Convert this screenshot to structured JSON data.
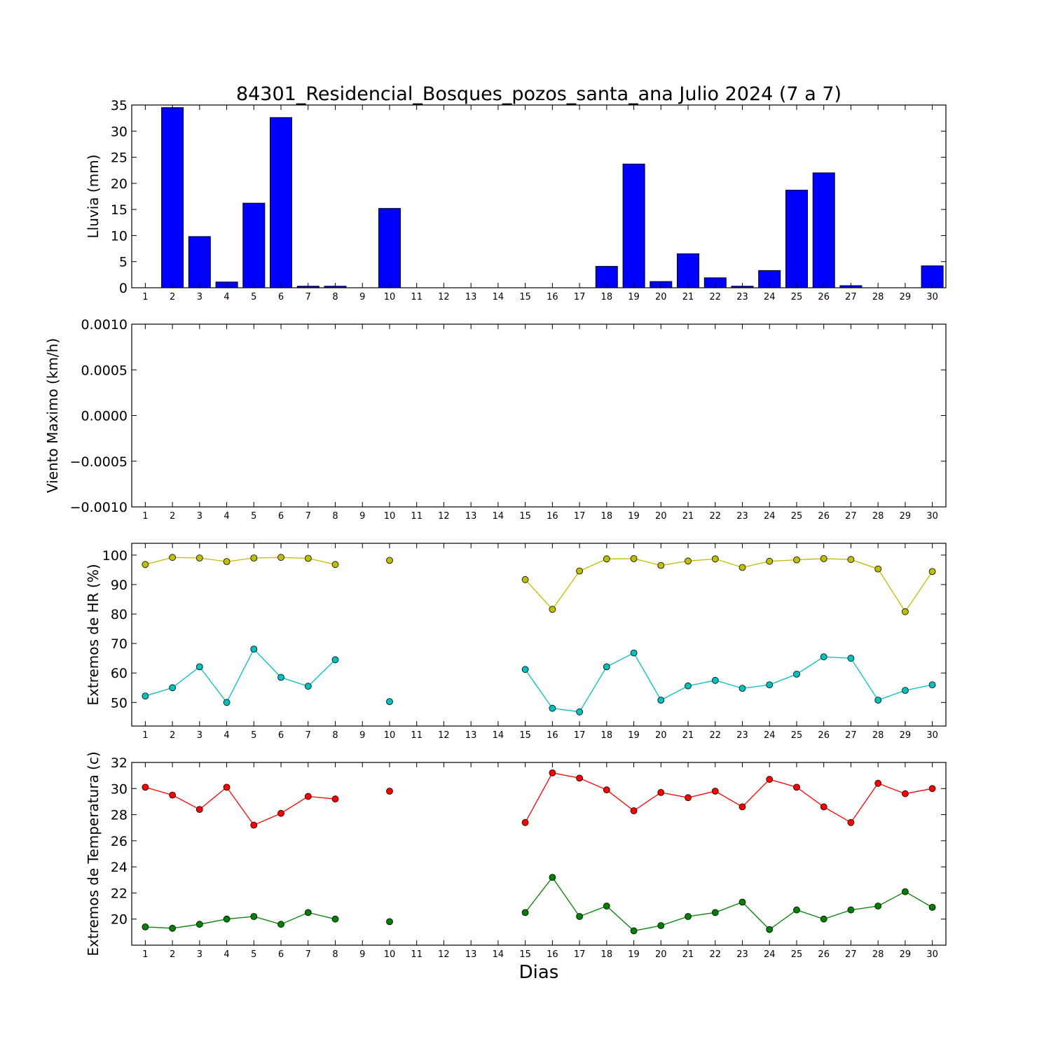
{
  "chart_data": {
    "title": "84301_Residencial_Bosques_pozos_santa_ana Julio 2024  (7 a 7)",
    "xlabel": "Dias",
    "days": [
      "1",
      "2",
      "3",
      "4",
      "5",
      "6",
      "7",
      "8",
      "9",
      "10",
      "11",
      "12",
      "13",
      "14",
      "15",
      "16",
      "17",
      "18",
      "19",
      "20",
      "21",
      "22",
      "23",
      "24",
      "25",
      "26",
      "27",
      "28",
      "29",
      "30"
    ],
    "panels": [
      {
        "type": "bar",
        "ylabel": "Lluvia (mm)",
        "ylim": [
          0,
          35
        ],
        "yticks": [
          "0",
          "5",
          "10",
          "15",
          "20",
          "25",
          "30",
          "35"
        ],
        "series": [
          {
            "color": "#0000ff",
            "values": [
              0,
              34.5,
              9.8,
              1.1,
              16.2,
              32.6,
              0.3,
              0.3,
              0,
              15.2,
              0,
              0,
              0,
              0,
              0,
              0,
              0,
              4.1,
              23.7,
              1.2,
              6.5,
              1.9,
              0.3,
              3.3,
              18.7,
              22.0,
              0.4,
              0,
              0,
              4.2
            ]
          }
        ]
      },
      {
        "type": "line",
        "ylabel": "Viento Maximo (km/h)",
        "ylim": [
          -0.001,
          0.001
        ],
        "yticks": [
          "−0.0010",
          "−0.0005",
          "0.0000",
          "0.0005",
          "0.0010"
        ],
        "series": []
      },
      {
        "type": "line",
        "ylabel": "Extremos de HR (%)",
        "ylim": [
          42,
          104
        ],
        "yticks": [
          "50",
          "60",
          "70",
          "80",
          "90",
          "100"
        ],
        "series": [
          {
            "color": "#bfbf00",
            "values": [
              96.8,
              99.2,
              99.0,
              97.8,
              99.0,
              99.2,
              98.9,
              96.8,
              null,
              98.2,
              null,
              null,
              null,
              null,
              91.7,
              81.6,
              94.6,
              98.7,
              98.8,
              96.5,
              98.0,
              98.7,
              95.8,
              97.9,
              98.4,
              98.8,
              98.5,
              95.3,
              80.8,
              94.4
            ]
          },
          {
            "color": "#00bfbf",
            "values": [
              52.2,
              55.0,
              62.1,
              50.0,
              68.1,
              58.5,
              55.5,
              64.5,
              null,
              50.3,
              null,
              null,
              null,
              null,
              61.2,
              48.0,
              46.8,
              62.1,
              66.8,
              50.8,
              55.6,
              57.5,
              54.8,
              56.0,
              59.6,
              65.5,
              65.0,
              50.8,
              54.1,
              56.0
            ]
          }
        ]
      },
      {
        "type": "line",
        "ylabel": "Extremos de Temperatura (c)",
        "ylim": [
          18,
          32
        ],
        "yticks": [
          "20",
          "22",
          "24",
          "26",
          "28",
          "30",
          "32"
        ],
        "series": [
          {
            "color": "#ff0000",
            "values": [
              30.1,
              29.5,
              28.4,
              30.1,
              27.2,
              28.1,
              29.4,
              29.2,
              null,
              29.8,
              null,
              null,
              null,
              null,
              27.4,
              31.2,
              30.8,
              29.9,
              28.3,
              29.7,
              29.3,
              29.8,
              28.6,
              30.7,
              30.1,
              28.6,
              27.4,
              30.4,
              29.6,
              30.0
            ]
          },
          {
            "color": "#008000",
            "values": [
              19.4,
              19.3,
              19.6,
              20.0,
              20.2,
              19.6,
              20.5,
              20.0,
              null,
              19.8,
              null,
              null,
              null,
              null,
              20.5,
              23.2,
              20.2,
              21.0,
              19.1,
              19.5,
              20.2,
              20.5,
              21.3,
              19.2,
              20.7,
              20.0,
              20.7,
              21.0,
              22.1,
              20.9
            ]
          }
        ]
      }
    ]
  }
}
